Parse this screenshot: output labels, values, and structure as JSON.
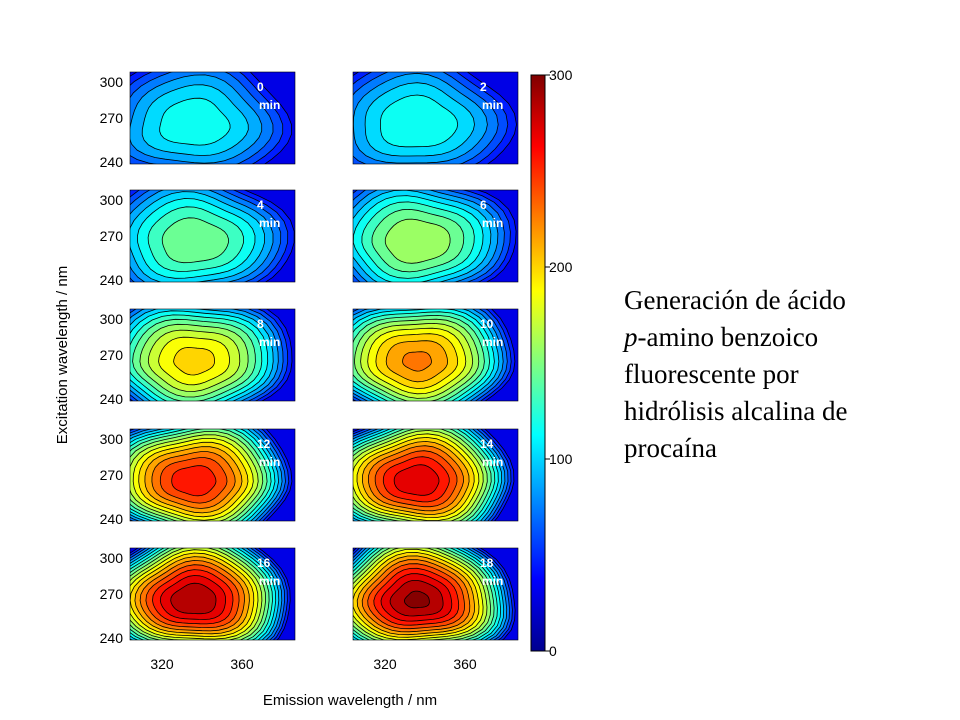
{
  "chart_data": {
    "type": "heatmap",
    "xlabel": "Emission wavelength / nm",
    "ylabel": "Excitation wavelength / nm",
    "x_ticks": [
      "320",
      "360"
    ],
    "y_ticks": [
      "300",
      "270",
      "240"
    ],
    "colorbar": {
      "ticks": [
        "0",
        "100",
        "200",
        "300"
      ],
      "range": [
        0,
        300
      ],
      "colormap": "jet"
    },
    "peak_location": {
      "emission_nm": 335,
      "excitation_nm": 265
    },
    "panels": [
      {
        "time": "0",
        "unit": "min",
        "peak_intensity": 120
      },
      {
        "time": "2",
        "unit": "min",
        "peak_intensity": 123
      },
      {
        "time": "4",
        "unit": "min",
        "peak_intensity": 150
      },
      {
        "time": "6",
        "unit": "min",
        "peak_intensity": 165
      },
      {
        "time": "8",
        "unit": "min",
        "peak_intensity": 200
      },
      {
        "time": "10",
        "unit": "min",
        "peak_intensity": 225
      },
      {
        "time": "12",
        "unit": "min",
        "peak_intensity": 260
      },
      {
        "time": "14",
        "unit": "min",
        "peak_intensity": 275
      },
      {
        "time": "16",
        "unit": "min",
        "peak_intensity": 290
      },
      {
        "time": "18",
        "unit": "min",
        "peak_intensity": 295
      }
    ]
  },
  "caption": {
    "line1": "Generación de ácido",
    "line2_italic": "p",
    "line2_rest": "-amino benzoico",
    "line3": "fluorescente por",
    "line4": "hidrólisis alcalina de",
    "line5": "procaína"
  }
}
